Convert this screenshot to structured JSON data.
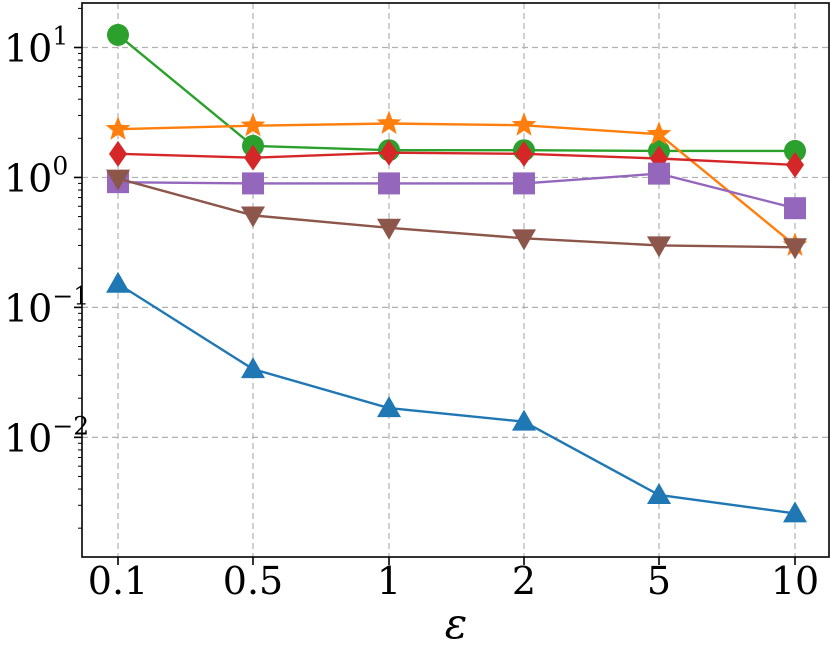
{
  "chart_data": {
    "type": "line",
    "title": "",
    "xlabel": "ε",
    "ylabel": "",
    "yscale": "log",
    "ylim": [
      0.0012,
      22
    ],
    "grid": true,
    "categories": [
      "0.1",
      "0.5",
      "1",
      "2",
      "5",
      "10"
    ],
    "y_ticks": [
      {
        "value": 0.01,
        "base": "10",
        "exp": "−2"
      },
      {
        "value": 0.1,
        "base": "10",
        "exp": "−1"
      },
      {
        "value": 1,
        "base": "10",
        "exp": "0"
      },
      {
        "value": 10,
        "base": "10",
        "exp": "1"
      }
    ],
    "series": [
      {
        "name": "green-circle",
        "color": "#2ca02c",
        "marker": "circle",
        "values": [
          12.5,
          1.75,
          1.62,
          1.62,
          1.6,
          1.6
        ]
      },
      {
        "name": "orange-star",
        "color": "#ff7f0e",
        "marker": "star",
        "values": [
          2.35,
          2.5,
          2.6,
          2.52,
          2.15,
          0.3
        ]
      },
      {
        "name": "red-diamond",
        "color": "#d62728",
        "marker": "diamond",
        "values": [
          1.52,
          1.42,
          1.55,
          1.52,
          1.4,
          1.25
        ]
      },
      {
        "name": "purple-square",
        "color": "#9467bd",
        "marker": "square",
        "values": [
          0.92,
          0.9,
          0.9,
          0.9,
          1.07,
          0.58
        ]
      },
      {
        "name": "brown-triangle-down",
        "color": "#8c564b",
        "marker": "triangle-down",
        "values": [
          0.98,
          0.51,
          0.41,
          0.34,
          0.3,
          0.29
        ]
      },
      {
        "name": "blue-triangle-up",
        "color": "#1f77b4",
        "marker": "triangle-up",
        "values": [
          0.152,
          0.0335,
          0.0168,
          0.0132,
          0.0036,
          0.0026
        ]
      }
    ]
  }
}
